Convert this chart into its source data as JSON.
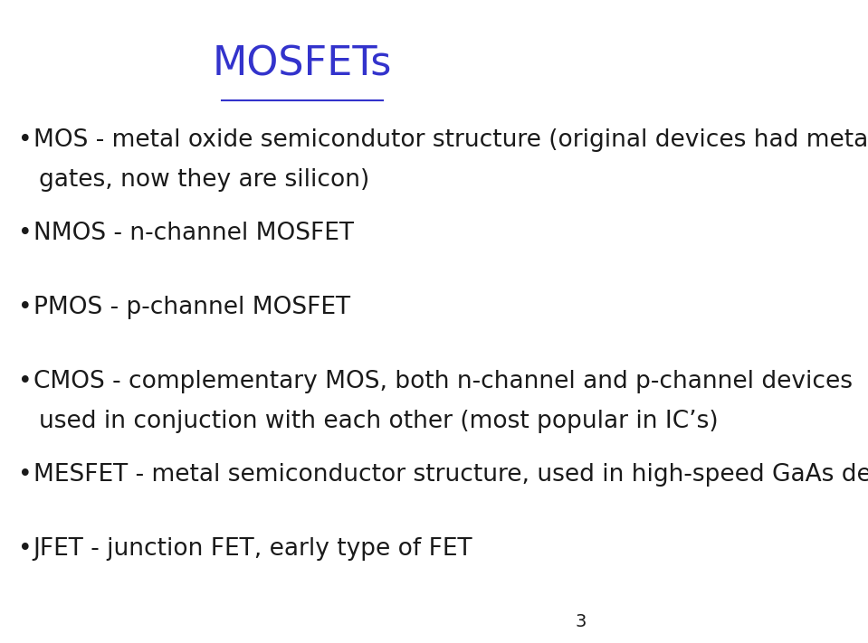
{
  "title": "MOSFETs",
  "title_color": "#3333cc",
  "title_fontsize": 32,
  "background_color": "#ffffff",
  "text_color": "#1a1a1a",
  "page_number": "3",
  "font_size": 19,
  "bullet_items": [
    {
      "bullet": "•",
      "line1": "MOS - metal oxide semicondutor structure (original devices had metal",
      "line2": "gates, now they are silicon)"
    },
    {
      "bullet": "•",
      "line1": "NMOS - n-channel MOSFET",
      "line2": null
    },
    {
      "bullet": "•",
      "line1": "PMOS - p-channel MOSFET",
      "line2": null
    },
    {
      "bullet": "•",
      "line1": "CMOS - complementary MOS, both n-channel and p-channel devices",
      "line2": "used in conjuction with each other (most popular in IC’s)"
    },
    {
      "bullet": "•",
      "line1": "MESFET - metal semiconductor structure, used in high-speed GaAs devices",
      "line2": null
    },
    {
      "bullet": "•",
      "line1": "JFET - junction FET, early type of FET",
      "line2": null
    }
  ]
}
